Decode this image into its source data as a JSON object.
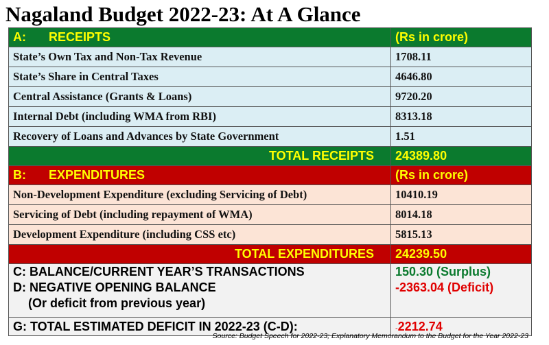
{
  "title": "Nagaland Budget 2022-23: At A Glance",
  "receipts": {
    "code": "A:",
    "heading": "RECEIPTS",
    "unit": "(Rs in crore)",
    "items": [
      {
        "label": "State’s Own Tax and Non-Tax Revenue",
        "value": "1708.11"
      },
      {
        "label": "State’s Share in Central Taxes",
        "value": "4646.80"
      },
      {
        "label": "Central Assistance (Grants & Loans)",
        "value": "9720.20"
      },
      {
        "label": "Internal Debt (including WMA from RBI)",
        "value": "8313.18"
      },
      {
        "label": "Recovery of Loans and Advances by State Government",
        "value": "1.51"
      }
    ],
    "total_label": "TOTAL RECEIPTS",
    "total_value": "24389.80"
  },
  "expenditures": {
    "code": "B:",
    "heading": "EXPENDITURES",
    "unit": "(Rs in crore)",
    "items": [
      {
        "label": "Non-Development Expenditure (excluding Servicing of Debt)",
        "value": "10410.19"
      },
      {
        "label": "Servicing of Debt (including repayment of WMA)",
        "value": "8014.18"
      },
      {
        "label": "Development Expenditure (including CSS etc)",
        "value": "5815.13"
      }
    ],
    "total_label": "TOTAL EXPENDITURES",
    "total_value": "24239.50"
  },
  "summary": {
    "c_label": "C: BALANCE/CURRENT YEAR’S TRANSACTIONS",
    "c_value": "150.30 (Surplus)",
    "d_label": "D: NEGATIVE OPENING BALANCE",
    "d_sublabel": "(Or deficit from previous year)",
    "d_value": "-2363.04 (Deficit)",
    "g_label": "G: TOTAL ESTIMATED DEFICIT IN 2022-23  (C-D):",
    "g_sign": "-",
    "g_value": "2212.74"
  },
  "source": "Source: Budget Speech for 2022-23; Explanatory Memorandum to the Budget for the Year 2022-23",
  "colors": {
    "header_green": "#0b7a2e",
    "header_red": "#c00000",
    "header_text": "#ffff00",
    "receipts_row_bg": "#dbeef4",
    "expenditure_row_bg": "#fce4d6",
    "surplus_text": "#0b7a2e",
    "deficit_text": "#e00000"
  }
}
